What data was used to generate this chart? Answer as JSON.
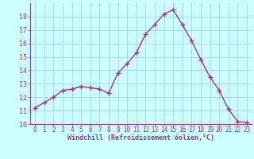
{
  "x": [
    0,
    1,
    2,
    3,
    4,
    5,
    6,
    7,
    8,
    9,
    10,
    11,
    12,
    13,
    14,
    15,
    16,
    17,
    18,
    19,
    20,
    21,
    22,
    23
  ],
  "y": [
    11.2,
    11.6,
    12.0,
    12.5,
    12.6,
    12.8,
    12.7,
    12.6,
    12.3,
    13.8,
    14.5,
    15.3,
    16.7,
    17.4,
    18.2,
    18.5,
    17.4,
    16.2,
    14.8,
    13.5,
    12.5,
    11.1,
    10.2,
    10.1
  ],
  "line_color": "#993399",
  "marker": "+",
  "marker_size": 4,
  "background_color": "#ccffff",
  "grid_color": "#aadddd",
  "xlabel": "Windchill (Refroidissement éolien,°C)",
  "xlabel_color": "#993399",
  "tick_color": "#993399",
  "ylim": [
    10,
    19
  ],
  "xlim": [
    -0.5,
    23.5
  ],
  "yticks": [
    10,
    11,
    12,
    13,
    14,
    15,
    16,
    17,
    18
  ],
  "xticks": [
    0,
    1,
    2,
    3,
    4,
    5,
    6,
    7,
    8,
    9,
    10,
    11,
    12,
    13,
    14,
    15,
    16,
    17,
    18,
    19,
    20,
    21,
    22,
    23
  ],
  "xtick_labels": [
    "0",
    "1",
    "2",
    "3",
    "4",
    "5",
    "6",
    "7",
    "8",
    "9",
    "10",
    "11",
    "12",
    "13",
    "14",
    "15",
    "16",
    "17",
    "18",
    "19",
    "20",
    "21",
    "22",
    "23"
  ],
  "ytick_labels": [
    "10",
    "11",
    "12",
    "13",
    "14",
    "15",
    "16",
    "17",
    "18"
  ]
}
